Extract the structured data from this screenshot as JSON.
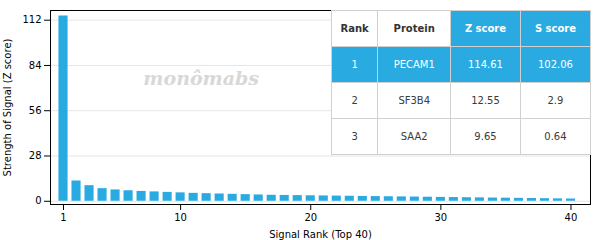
{
  "chart_data": {
    "type": "bar",
    "xlabel": "Signal Rank (Top 40)",
    "ylabel": "Strength of Signal (Z score)",
    "x": [
      1,
      2,
      3,
      4,
      5,
      6,
      7,
      8,
      9,
      10,
      11,
      12,
      13,
      14,
      15,
      16,
      17,
      18,
      19,
      20,
      21,
      22,
      23,
      24,
      25,
      26,
      27,
      28,
      29,
      30,
      31,
      32,
      33,
      34,
      35,
      36,
      37,
      38,
      39,
      40
    ],
    "values": [
      114.61,
      12.55,
      9.65,
      7.8,
      7.0,
      6.5,
      6.1,
      5.8,
      5.5,
      5.2,
      4.9,
      4.7,
      4.5,
      4.3,
      4.1,
      3.9,
      3.7,
      3.6,
      3.5,
      3.4,
      3.3,
      3.2,
      3.1,
      3.0,
      2.9,
      2.8,
      2.7,
      2.6,
      2.5,
      2.4,
      2.3,
      2.2,
      2.1,
      2.0,
      1.9,
      1.8,
      1.7,
      1.6,
      1.5,
      1.4
    ],
    "color": "#29ABE2",
    "xlim": [
      0.0,
      41.5
    ],
    "xticks": [
      1,
      10,
      20,
      30,
      40
    ],
    "ylim": [
      -2,
      118
    ],
    "yticks": [
      0,
      28,
      56,
      84,
      112
    ],
    "grid": true,
    "annotations": [
      "monômabs"
    ],
    "table": [
      [
        "Rank",
        "Protein",
        "Z score",
        "S score"
      ],
      [
        "1",
        "PECAM1",
        "114.61",
        "102.06"
      ],
      [
        "2",
        "SF3B4",
        "12.55",
        "2.9"
      ],
      [
        "3",
        "SAA2",
        "9.65",
        "0.64"
      ]
    ]
  }
}
